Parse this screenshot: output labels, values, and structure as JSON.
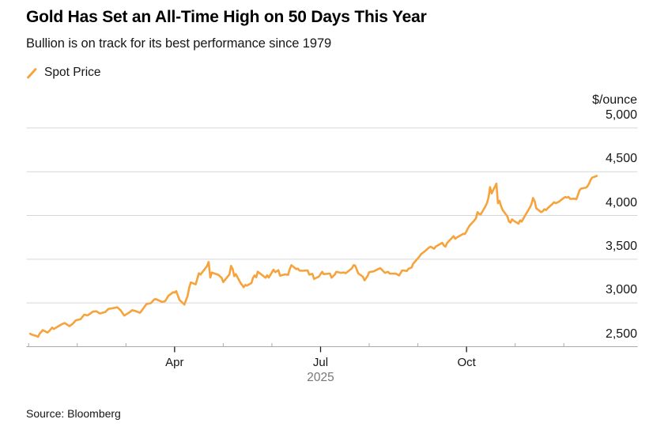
{
  "header": {
    "title": "Gold Has Set an All-Time High on 50 Days This Year",
    "subtitle": "Bullion is on track for its best performance since 1979"
  },
  "legend": {
    "label": "Spot Price",
    "swatch": "slash-icon",
    "color": "#F6A33C"
  },
  "footer": {
    "source": "Source: Bloomberg"
  },
  "chart_data": {
    "type": "line",
    "title": "Gold Has Set an All-Time High on 50 Days This Year",
    "subtitle": "Bullion is on track for its best performance since 1979",
    "unit_label": "$/ounce",
    "grid": "horizontal",
    "legend_position": "top-left",
    "ylim": [
      2500,
      5000
    ],
    "colors": {
      "line": "#F6A33C",
      "gridline": "#d6d6d6",
      "axis": "#a9a9a9",
      "major_tick": "#1a1a1a",
      "text": "#161616",
      "year_text": "#767676"
    },
    "y_ticks": [
      {
        "value": 5000,
        "label": "5,000"
      },
      {
        "value": 4500,
        "label": "4,500"
      },
      {
        "value": 4000,
        "label": "4,000"
      },
      {
        "value": 3500,
        "label": "3,500"
      },
      {
        "value": 3000,
        "label": "3,000"
      },
      {
        "value": 2500,
        "label": "2,500"
      }
    ],
    "x_axis": {
      "year_label": "2025",
      "months": [
        {
          "name": "Jan",
          "major": false,
          "label": ""
        },
        {
          "name": "Feb",
          "major": false,
          "label": ""
        },
        {
          "name": "Mar",
          "major": false,
          "label": ""
        },
        {
          "name": "Apr",
          "major": true,
          "label": "Apr"
        },
        {
          "name": "May",
          "major": false,
          "label": ""
        },
        {
          "name": "Jun",
          "major": false,
          "label": ""
        },
        {
          "name": "Jul",
          "major": true,
          "label": "Jul"
        },
        {
          "name": "Aug",
          "major": false,
          "label": ""
        },
        {
          "name": "Sep",
          "major": false,
          "label": ""
        },
        {
          "name": "Oct",
          "major": true,
          "label": "Oct"
        },
        {
          "name": "Nov",
          "major": false,
          "label": ""
        },
        {
          "name": "Dec",
          "major": false,
          "label": ""
        }
      ]
    },
    "series": [
      {
        "name": "Spot Price",
        "color": "#F6A33C",
        "points": [
          [
            "01-02",
            2648
          ],
          [
            "01-03",
            2638
          ],
          [
            "01-06",
            2622
          ],
          [
            "01-07",
            2612
          ],
          [
            "01-08",
            2648
          ],
          [
            "01-10",
            2690
          ],
          [
            "01-13",
            2662
          ],
          [
            "01-14",
            2676
          ],
          [
            "01-16",
            2718
          ],
          [
            "01-17",
            2702
          ],
          [
            "01-21",
            2745
          ],
          [
            "01-22",
            2756
          ],
          [
            "01-24",
            2770
          ],
          [
            "01-27",
            2735
          ],
          [
            "01-29",
            2760
          ],
          [
            "01-31",
            2800
          ],
          [
            "02-03",
            2815
          ],
          [
            "02-05",
            2866
          ],
          [
            "02-07",
            2858
          ],
          [
            "02-10",
            2900
          ],
          [
            "02-12",
            2905
          ],
          [
            "02-14",
            2880
          ],
          [
            "02-17",
            2895
          ],
          [
            "02-19",
            2932
          ],
          [
            "02-21",
            2938
          ],
          [
            "02-24",
            2950
          ],
          [
            "02-26",
            2915
          ],
          [
            "02-28",
            2855
          ],
          [
            "03-03",
            2890
          ],
          [
            "03-05",
            2918
          ],
          [
            "03-07",
            2908
          ],
          [
            "03-10",
            2888
          ],
          [
            "03-12",
            2935
          ],
          [
            "03-14",
            2985
          ],
          [
            "03-17",
            3000
          ],
          [
            "03-19",
            3040
          ],
          [
            "03-20",
            3045
          ],
          [
            "03-24",
            3012
          ],
          [
            "03-26",
            3020
          ],
          [
            "03-28",
            3080
          ],
          [
            "03-31",
            3122
          ],
          [
            "04-01",
            3118
          ],
          [
            "04-02",
            3135
          ],
          [
            "04-04",
            3035
          ],
          [
            "04-07",
            2982
          ],
          [
            "04-09",
            3080
          ],
          [
            "04-10",
            3172
          ],
          [
            "04-11",
            3235
          ],
          [
            "04-14",
            3212
          ],
          [
            "04-16",
            3340
          ],
          [
            "04-17",
            3325
          ],
          [
            "04-21",
            3422
          ],
          [
            "04-22",
            3468
          ],
          [
            "04-23",
            3290
          ],
          [
            "04-24",
            3348
          ],
          [
            "04-28",
            3322
          ],
          [
            "04-30",
            3288
          ],
          [
            "05-01",
            3238
          ],
          [
            "05-05",
            3328
          ],
          [
            "05-06",
            3424
          ],
          [
            "05-07",
            3388
          ],
          [
            "05-08",
            3306
          ],
          [
            "05-09",
            3330
          ],
          [
            "05-12",
            3230
          ],
          [
            "05-14",
            3180
          ],
          [
            "05-15",
            3206
          ],
          [
            "05-16",
            3198
          ],
          [
            "05-19",
            3228
          ],
          [
            "05-20",
            3290
          ],
          [
            "05-21",
            3314
          ],
          [
            "05-22",
            3294
          ],
          [
            "05-23",
            3358
          ],
          [
            "05-27",
            3302
          ],
          [
            "05-28",
            3288
          ],
          [
            "05-29",
            3316
          ],
          [
            "05-30",
            3290
          ],
          [
            "06-02",
            3380
          ],
          [
            "06-03",
            3352
          ],
          [
            "06-05",
            3374
          ],
          [
            "06-06",
            3312
          ],
          [
            "06-09",
            3326
          ],
          [
            "06-11",
            3322
          ],
          [
            "06-12",
            3386
          ],
          [
            "06-13",
            3432
          ],
          [
            "06-16",
            3388
          ],
          [
            "06-17",
            3392
          ],
          [
            "06-18",
            3370
          ],
          [
            "06-20",
            3368
          ],
          [
            "06-23",
            3372
          ],
          [
            "06-24",
            3324
          ],
          [
            "06-26",
            3332
          ],
          [
            "06-27",
            3274
          ],
          [
            "06-30",
            3302
          ],
          [
            "07-02",
            3356
          ],
          [
            "07-03",
            3330
          ],
          [
            "07-07",
            3336
          ],
          [
            "07-08",
            3288
          ],
          [
            "07-10",
            3324
          ],
          [
            "07-11",
            3356
          ],
          [
            "07-14",
            3344
          ],
          [
            "07-16",
            3348
          ],
          [
            "07-17",
            3340
          ],
          [
            "07-21",
            3396
          ],
          [
            "07-22",
            3432
          ],
          [
            "07-23",
            3428
          ],
          [
            "07-25",
            3338
          ],
          [
            "07-28",
            3300
          ],
          [
            "07-29",
            3258
          ],
          [
            "07-31",
            3310
          ],
          [
            "08-01",
            3352
          ],
          [
            "08-04",
            3362
          ],
          [
            "08-06",
            3380
          ],
          [
            "08-08",
            3398
          ],
          [
            "08-11",
            3344
          ],
          [
            "08-13",
            3356
          ],
          [
            "08-14",
            3336
          ],
          [
            "08-18",
            3334
          ],
          [
            "08-20",
            3314
          ],
          [
            "08-22",
            3372
          ],
          [
            "08-25",
            3366
          ],
          [
            "08-26",
            3390
          ],
          [
            "08-28",
            3406
          ],
          [
            "08-29",
            3448
          ],
          [
            "09-02",
            3532
          ],
          [
            "09-03",
            3558
          ],
          [
            "09-05",
            3586
          ],
          [
            "09-08",
            3636
          ],
          [
            "09-09",
            3642
          ],
          [
            "09-11",
            3620
          ],
          [
            "09-12",
            3644
          ],
          [
            "09-16",
            3688
          ],
          [
            "09-17",
            3658
          ],
          [
            "09-18",
            3644
          ],
          [
            "09-19",
            3684
          ],
          [
            "09-22",
            3744
          ],
          [
            "09-23",
            3764
          ],
          [
            "09-24",
            3734
          ],
          [
            "09-25",
            3748
          ],
          [
            "09-26",
            3758
          ],
          [
            "09-29",
            3790
          ],
          [
            "09-30",
            3788
          ],
          [
            "10-01",
            3820
          ],
          [
            "10-02",
            3856
          ],
          [
            "10-03",
            3886
          ],
          [
            "10-06",
            3944
          ],
          [
            "10-07",
            3968
          ],
          [
            "10-08",
            4038
          ],
          [
            "10-09",
            4020
          ],
          [
            "10-10",
            4010
          ],
          [
            "10-13",
            4104
          ],
          [
            "10-14",
            4142
          ],
          [
            "10-15",
            4202
          ],
          [
            "10-16",
            4324
          ],
          [
            "10-17",
            4252
          ],
          [
            "10-20",
            4365
          ],
          [
            "10-21",
            4140
          ],
          [
            "10-22",
            4168
          ],
          [
            "10-23",
            4108
          ],
          [
            "10-24",
            4062
          ],
          [
            "10-27",
            3990
          ],
          [
            "10-28",
            3932
          ],
          [
            "10-29",
            3918
          ],
          [
            "10-30",
            3956
          ],
          [
            "10-31",
            3940
          ],
          [
            "11-03",
            3906
          ],
          [
            "11-04",
            3944
          ],
          [
            "11-05",
            3930
          ],
          [
            "11-06",
            3962
          ],
          [
            "11-07",
            3996
          ],
          [
            "11-10",
            4090
          ],
          [
            "11-11",
            4128
          ],
          [
            "11-12",
            4200
          ],
          [
            "11-13",
            4164
          ],
          [
            "11-14",
            4082
          ],
          [
            "11-17",
            4038
          ],
          [
            "11-18",
            4048
          ],
          [
            "11-19",
            4072
          ],
          [
            "11-20",
            4062
          ],
          [
            "11-21",
            4082
          ],
          [
            "11-24",
            4132
          ],
          [
            "11-25",
            4152
          ],
          [
            "11-26",
            4140
          ],
          [
            "11-28",
            4158
          ],
          [
            "12-01",
            4202
          ],
          [
            "12-02",
            4212
          ],
          [
            "12-03",
            4204
          ],
          [
            "12-04",
            4212
          ],
          [
            "12-05",
            4190
          ],
          [
            "12-08",
            4192
          ],
          [
            "12-09",
            4186
          ],
          [
            "12-10",
            4236
          ],
          [
            "12-11",
            4288
          ],
          [
            "12-12",
            4308
          ],
          [
            "12-15",
            4318
          ],
          [
            "12-16",
            4332
          ],
          [
            "12-17",
            4362
          ],
          [
            "12-18",
            4404
          ],
          [
            "12-19",
            4432
          ],
          [
            "12-22",
            4452
          ]
        ]
      }
    ]
  }
}
